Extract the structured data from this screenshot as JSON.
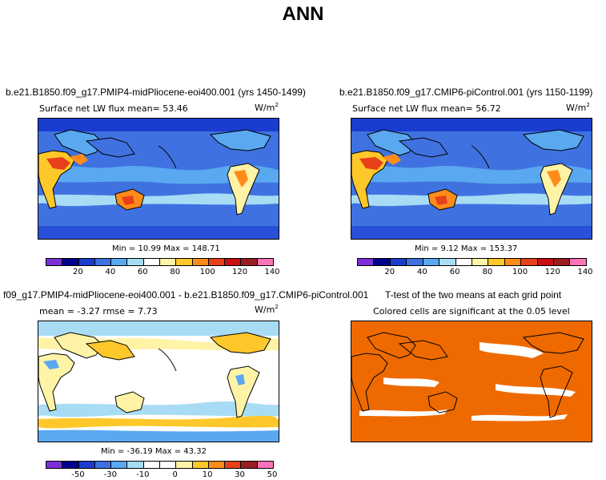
{
  "title": "ANN",
  "units_base": "W/m",
  "units_exp": "2",
  "panels": [
    {
      "title": "b.e21.B1850.f09_g17.PMIP4-midPliocene-eoi400.001 (yrs 1450-1499)",
      "subtitle": "Surface net LW flux mean=   53.46",
      "minmax": "Min =   10.99  Max =  148.71",
      "colorbar_ticks": [
        "20",
        "40",
        "60",
        "80",
        "100",
        "120",
        "140"
      ]
    },
    {
      "title": "b.e21.B1850.f09_g17.CMIP6-piControl.001 (yrs 1150-1199)",
      "subtitle": "Surface net LW flux mean=   56.72",
      "minmax": "Min =    9.12  Max =  153.37",
      "colorbar_ticks": [
        "20",
        "40",
        "60",
        "80",
        "100",
        "120",
        "140"
      ]
    },
    {
      "title": "f09_g17.PMIP4-midPliocene-eoi400.001 - b.e21.B1850.f09_g17.CMIP6-piControl.001",
      "subtitle": "mean =  -3.27     rmse =    7.73",
      "minmax": "Min =  -36.19  Max =   43.32",
      "colorbar_ticks": [
        "-50",
        "-30",
        "-10",
        "0",
        "10",
        "30",
        "50"
      ]
    },
    {
      "title": "T-test of the two means at each grid point",
      "subtitle": "Colored cells are significant at the 0.05 level"
    }
  ],
  "colors": {
    "abs_scale": [
      "#7b2fd6",
      "#00008b",
      "#1a3ccf",
      "#3f72e0",
      "#5aa8f0",
      "#a8dcf5",
      "#ffffff",
      "#fff3a6",
      "#ffc82a",
      "#ff8c1a",
      "#e8401a",
      "#c80f14",
      "#9b1d20",
      "#ff73b9"
    ],
    "diff_scale": [
      "#7b2fd6",
      "#00008b",
      "#1a3ccf",
      "#3f72e0",
      "#5aa8f0",
      "#a8dcf5",
      "#ffffff",
      "#ffffff",
      "#fff3a6",
      "#ffc82a",
      "#ff8c1a",
      "#e8401a",
      "#9b1d20",
      "#ff73b9"
    ],
    "ttest_fill": "#ee6a00"
  }
}
